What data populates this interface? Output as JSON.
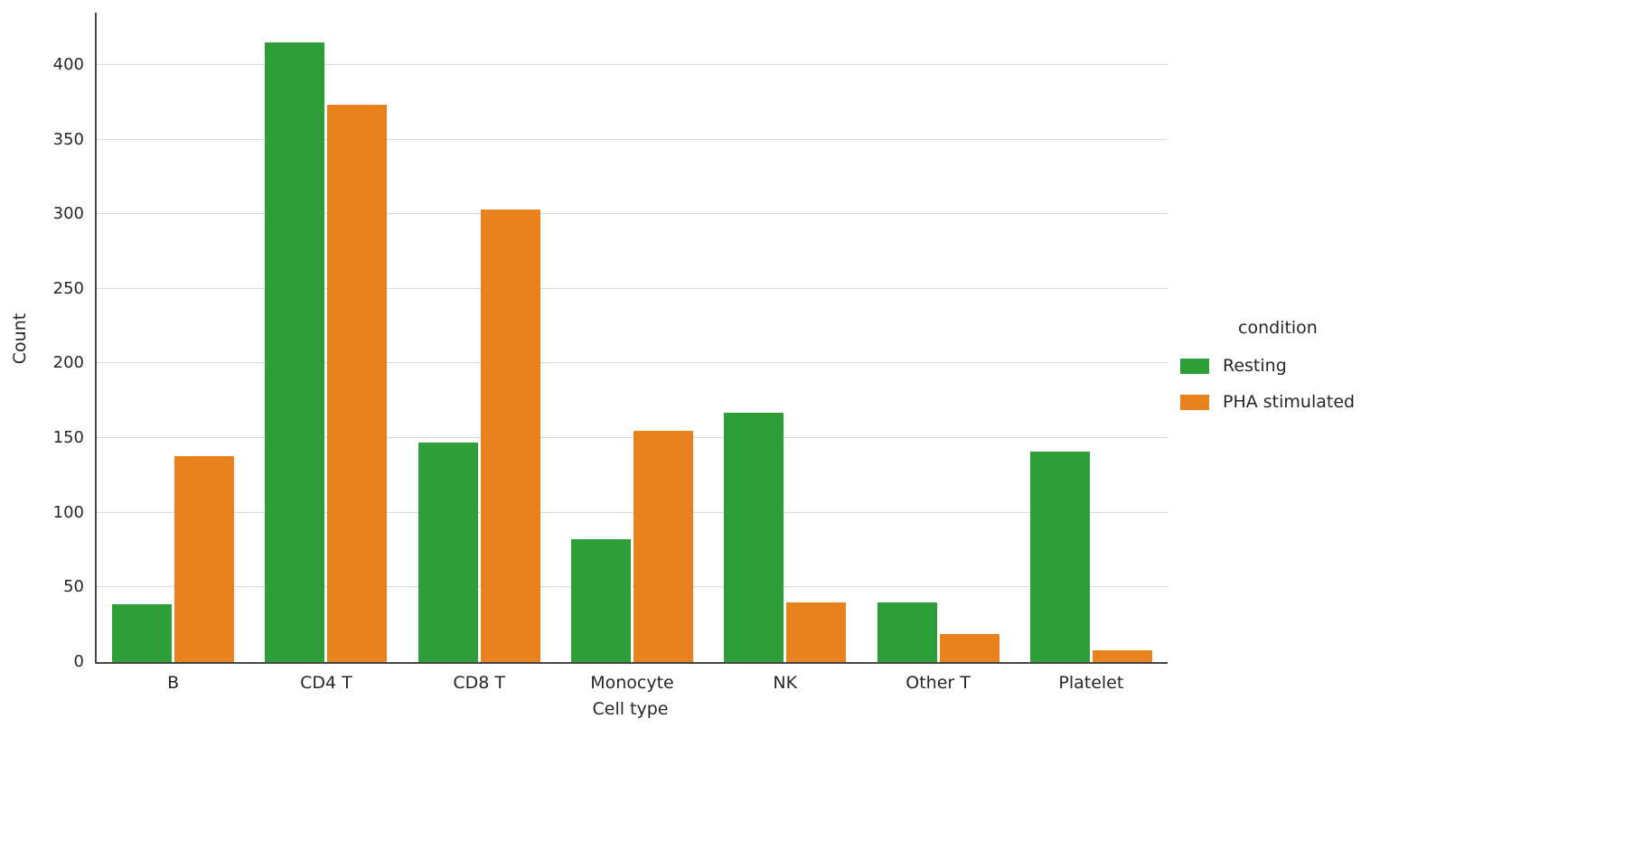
{
  "chart_data": {
    "type": "bar",
    "title": "",
    "xlabel": "Cell type",
    "ylabel": "Count",
    "categories": [
      "B",
      "CD4 T",
      "CD8 T",
      "Monocyte",
      "NK",
      "Other T",
      "Platelet"
    ],
    "series": [
      {
        "name": "Resting",
        "color": "#2e9e38",
        "values": [
          39,
          415,
          147,
          82,
          167,
          40,
          141
        ]
      },
      {
        "name": "PHA stimulated",
        "color": "#e8821f",
        "values": [
          138,
          373,
          303,
          155,
          40,
          19,
          8
        ]
      }
    ],
    "ylim": [
      0,
      435
    ],
    "yticks": [
      0,
      50,
      100,
      150,
      200,
      250,
      300,
      350,
      400
    ],
    "grid": "horizontal",
    "legend": {
      "title": "condition",
      "position": "right"
    }
  }
}
